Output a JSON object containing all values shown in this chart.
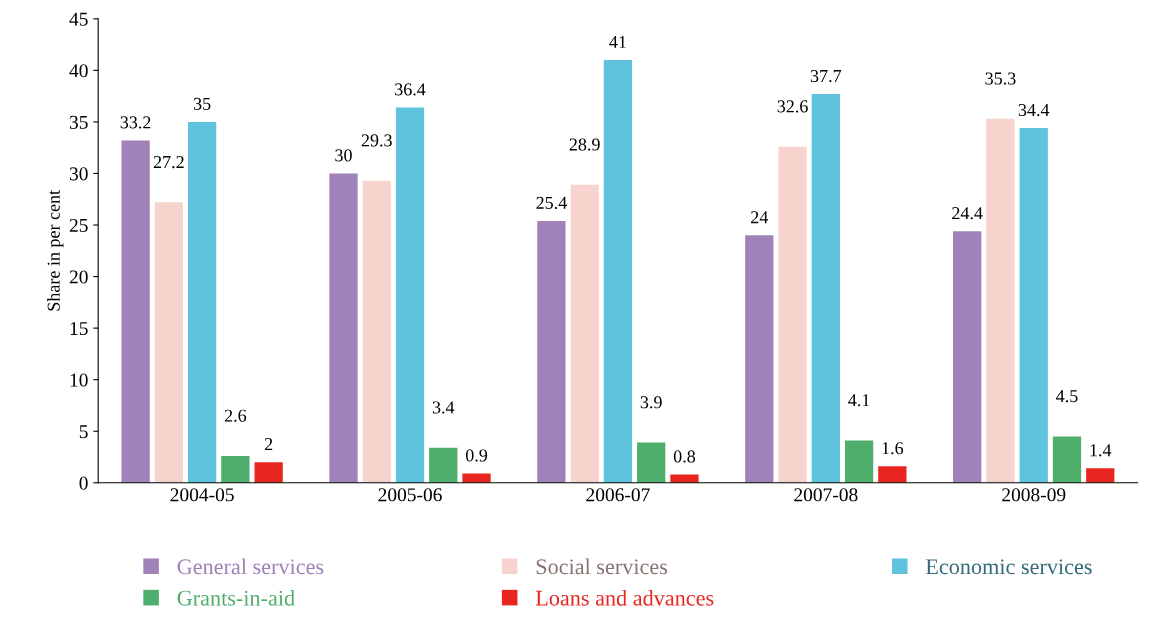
{
  "chart_data": {
    "type": "bar",
    "ylabel": "Share in per cent",
    "categories": [
      "2004-05",
      "2005-06",
      "2006-07",
      "2007-08",
      "2008-09"
    ],
    "series": [
      {
        "name": "General services",
        "color": "#9e82b8",
        "values": [
          33.2,
          30,
          25.4,
          24,
          24.4
        ]
      },
      {
        "name": "Social services",
        "color": "#f6d3cc",
        "values": [
          27.2,
          29.3,
          28.9,
          32.6,
          35.3
        ]
      },
      {
        "name": "Economic services",
        "color": "#5fc3de",
        "values": [
          35,
          36.4,
          41,
          37.7,
          34.4
        ]
      },
      {
        "name": "Grants-in-aid",
        "color": "#4fae6c",
        "values": [
          2.6,
          3.4,
          3.9,
          4.1,
          4.5
        ]
      },
      {
        "name": "Loans and advances",
        "color": "#e8251f",
        "values": [
          2,
          0.9,
          0.8,
          1.6,
          1.4
        ]
      }
    ],
    "ylim": [
      0,
      45
    ],
    "yticks": [
      0,
      5,
      10,
      15,
      20,
      25,
      30,
      35,
      40,
      45
    ],
    "data_labels": true,
    "grid": false,
    "legend": "bottom"
  }
}
